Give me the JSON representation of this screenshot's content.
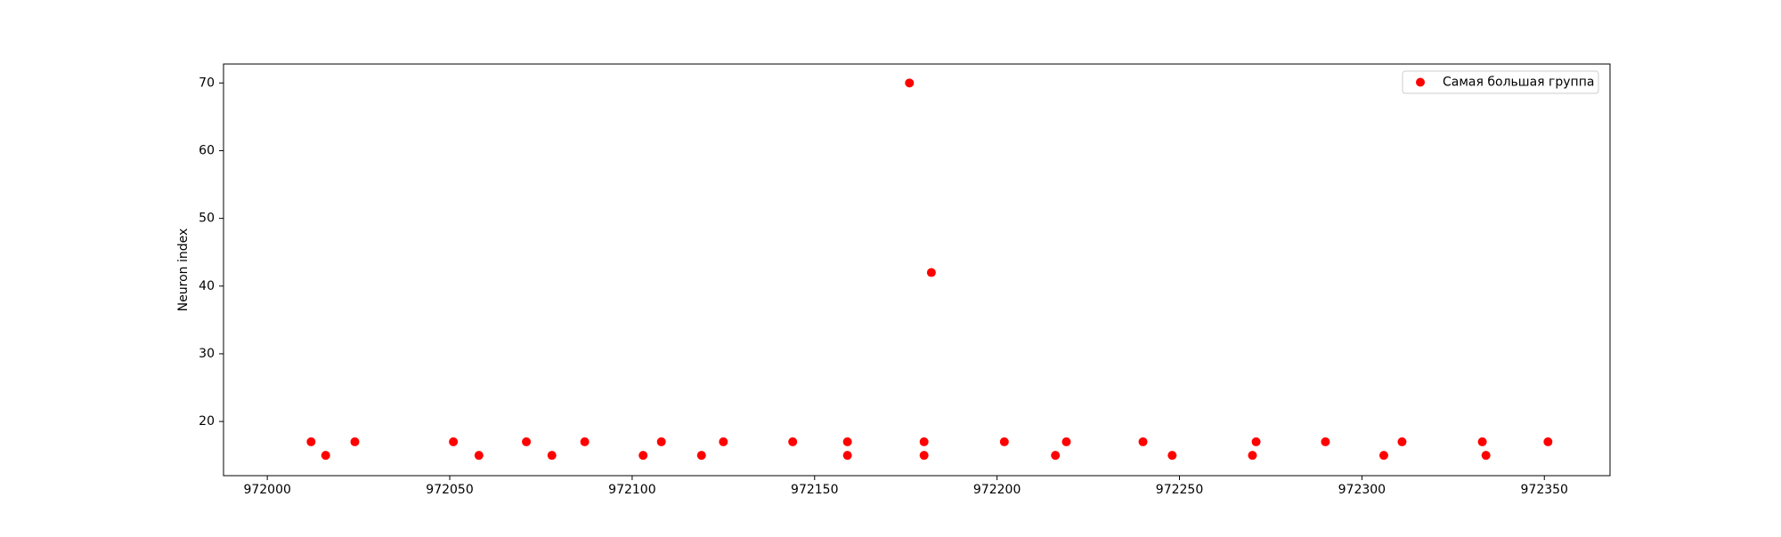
{
  "chart_data": {
    "type": "scatter",
    "title": "",
    "xlabel": "",
    "ylabel": "Neuron index",
    "xlim": [
      971988,
      972368
    ],
    "ylim": [
      12,
      72.8
    ],
    "xticks": [
      972000,
      972050,
      972100,
      972150,
      972200,
      972250,
      972300,
      972350
    ],
    "yticks": [
      20,
      30,
      40,
      50,
      60,
      70
    ],
    "grid": false,
    "legend_position": "top-right",
    "series": [
      {
        "name": "Самая большая группа",
        "color": "#ff0000",
        "marker": "circle",
        "points": [
          {
            "x": 972012,
            "y": 17
          },
          {
            "x": 972016,
            "y": 15
          },
          {
            "x": 972024,
            "y": 17
          },
          {
            "x": 972051,
            "y": 17
          },
          {
            "x": 972058,
            "y": 15
          },
          {
            "x": 972071,
            "y": 17
          },
          {
            "x": 972078,
            "y": 15
          },
          {
            "x": 972087,
            "y": 17
          },
          {
            "x": 972103,
            "y": 15
          },
          {
            "x": 972108,
            "y": 17
          },
          {
            "x": 972119,
            "y": 15
          },
          {
            "x": 972125,
            "y": 17
          },
          {
            "x": 972144,
            "y": 17
          },
          {
            "x": 972159,
            "y": 17
          },
          {
            "x": 972159,
            "y": 15
          },
          {
            "x": 972176,
            "y": 70
          },
          {
            "x": 972180,
            "y": 17
          },
          {
            "x": 972180,
            "y": 15
          },
          {
            "x": 972182,
            "y": 42
          },
          {
            "x": 972202,
            "y": 17
          },
          {
            "x": 972216,
            "y": 15
          },
          {
            "x": 972219,
            "y": 17
          },
          {
            "x": 972240,
            "y": 17
          },
          {
            "x": 972248,
            "y": 15
          },
          {
            "x": 972270,
            "y": 15
          },
          {
            "x": 972271,
            "y": 17
          },
          {
            "x": 972290,
            "y": 17
          },
          {
            "x": 972306,
            "y": 15
          },
          {
            "x": 972311,
            "y": 17
          },
          {
            "x": 972333,
            "y": 17
          },
          {
            "x": 972334,
            "y": 15
          },
          {
            "x": 972351,
            "y": 17
          }
        ]
      }
    ]
  }
}
